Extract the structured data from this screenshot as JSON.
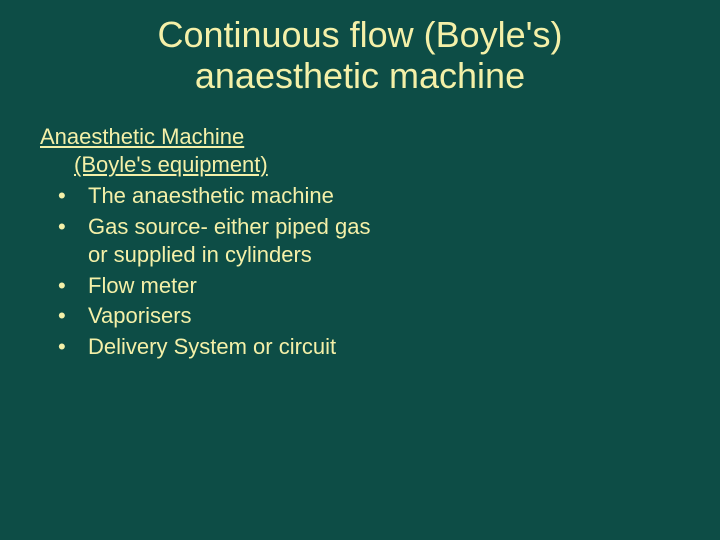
{
  "colors": {
    "background": "#0d4d46",
    "text": "#f4f0a8"
  },
  "typography": {
    "title_fontsize": 36,
    "body_fontsize": 22,
    "font_family": "Arial"
  },
  "title": {
    "line1": "Continuous flow (Boyle's)",
    "line2": "anaesthetic machine"
  },
  "heading": {
    "line1": "Anaesthetic Machine",
    "line2": "(Boyle's equipment)"
  },
  "bullets": [
    "The anaesthetic machine",
    "Gas source- either piped gas or supplied in cylinders",
    "Flow meter",
    "Vaporisers",
    "Delivery System or circuit"
  ]
}
